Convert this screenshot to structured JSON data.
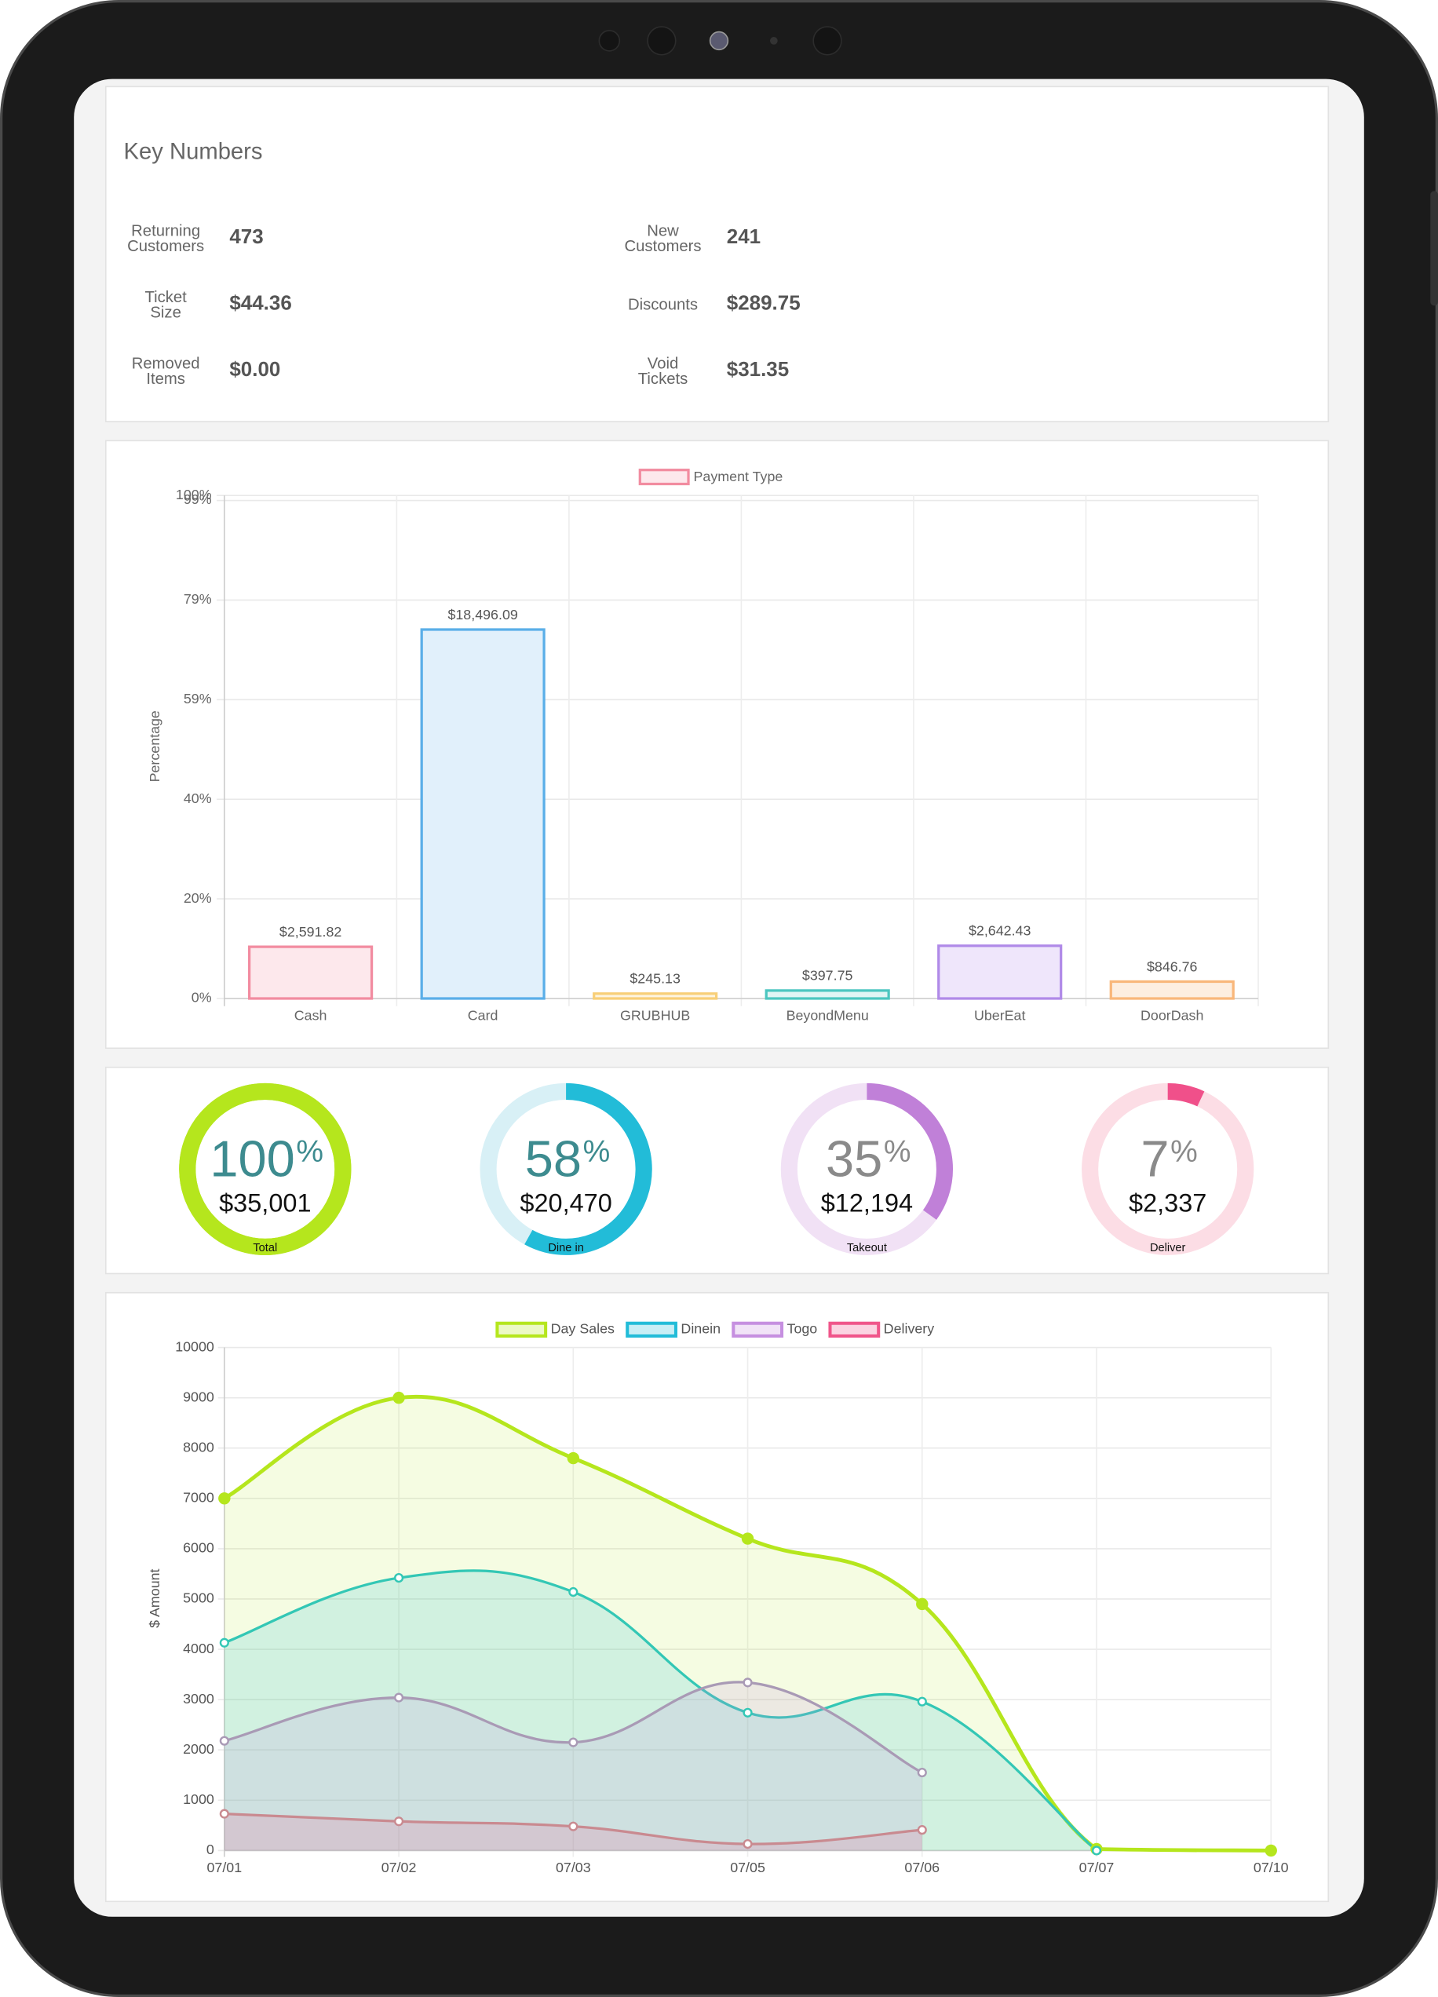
{
  "key_numbers": {
    "title": "Key Numbers",
    "items": [
      {
        "label": [
          "Returning",
          "Customers"
        ],
        "value": 473
      },
      {
        "label": [
          "New",
          "Customers"
        ],
        "value": 241
      },
      {
        "label": [
          "Ticket",
          "Size"
        ],
        "value": "$44.36"
      },
      {
        "label": [
          "Discounts"
        ],
        "value": "$289.75"
      },
      {
        "label": [
          "Removed",
          "Items"
        ],
        "value": "$0.00"
      },
      {
        "label": [
          "Void",
          "Tickets"
        ],
        "value": "$31.35"
      }
    ]
  },
  "chart_data": [
    {
      "type": "bar",
      "y_label": "Percentage",
      "categories": [
        "Cash",
        "Card",
        "GRUBHUB",
        "BeyondMenu",
        "UberEat",
        "DoorDash"
      ],
      "series": [
        {
          "name": "Payment Type",
          "color": "#f28ca0",
          "values": [
            10.28,
            73.34,
            0.97,
            1.58,
            10.48,
            3.36
          ],
          "amount_labels": [
            "$2,591.82",
            "$18,496.09",
            "$245.13",
            "$397.75",
            "$2,642.43",
            "$846.76"
          ],
          "bar_colors": [
            "#f28ca0",
            "#5aaee8",
            "#f8cf78",
            "#4cc6c0",
            "#b08ae8",
            "#f9b77a"
          ],
          "fill_colors": [
            "#fde8ec",
            "#e1f0fb",
            "#fdf4e0",
            "#e0f5f4",
            "#efe6fb",
            "#fdeee0"
          ]
        }
      ],
      "ylim": [
        0,
        100
      ],
      "yticks": [
        {
          "value": 0,
          "label": "0%"
        },
        {
          "value": 19.8,
          "label": "20%"
        },
        {
          "value": 39.6,
          "label": "40%"
        },
        {
          "value": 59.4,
          "label": "59%"
        },
        {
          "value": 79.2,
          "label": "79%"
        },
        {
          "value": 99,
          "label": "99%"
        },
        {
          "value": 100,
          "label": "100%"
        }
      ],
      "grid": true
    },
    {
      "type": "line",
      "y_label": "$ Amount",
      "categories": [
        "07/01",
        "07/02",
        "07/03",
        "07/05",
        "07/06",
        "07/07",
        "07/10"
      ],
      "series": [
        {
          "name": "Day Sales",
          "color": "#b5e61d",
          "line_color": "#b5e61d",
          "values": [
            7000,
            9000,
            7800,
            6200,
            4900,
            30,
            0
          ]
        },
        {
          "name": "Dinein",
          "color": "#22bcd8",
          "line_color": "#33c7b5",
          "values": [
            4130,
            5420,
            5140,
            2740,
            2960,
            0,
            null
          ]
        },
        {
          "name": "Togo",
          "color": "#c68fe0",
          "line_color": "#a99ab5",
          "values": [
            2180,
            3040,
            2150,
            3340,
            1550,
            null,
            null
          ]
        },
        {
          "name": "Delivery",
          "color": "#f0558a",
          "line_color": "#c98a90",
          "values": [
            730,
            580,
            480,
            130,
            410,
            null,
            null
          ]
        }
      ],
      "ylim": [
        0,
        10000
      ],
      "yticks": [
        0,
        1000,
        2000,
        3000,
        4000,
        5000,
        6000,
        7000,
        8000,
        9000,
        10000
      ],
      "grid": true
    }
  ],
  "gauges": {
    "unit": "%",
    "items": [
      {
        "label": "Total",
        "percent": 100,
        "amount": "$35,001",
        "color": "#b5e61d",
        "track": "#b5e61d",
        "text_color": "#3d8b8f"
      },
      {
        "label": "Dine in",
        "percent": 58,
        "amount": "$20,470",
        "color": "#22bcd8",
        "track": "#d8f0f6",
        "text_color": "#3d8b8f"
      },
      {
        "label": "Takeout",
        "percent": 35,
        "amount": "$12,194",
        "color": "#c080d8",
        "track": "#f1e1f5",
        "text_color": "#8a8a8a"
      },
      {
        "label": "Deliver",
        "percent": 7,
        "amount": "$2,337",
        "color": "#f0508a",
        "track": "#fcdde5",
        "text_color": "#8a8a8a"
      }
    ]
  }
}
